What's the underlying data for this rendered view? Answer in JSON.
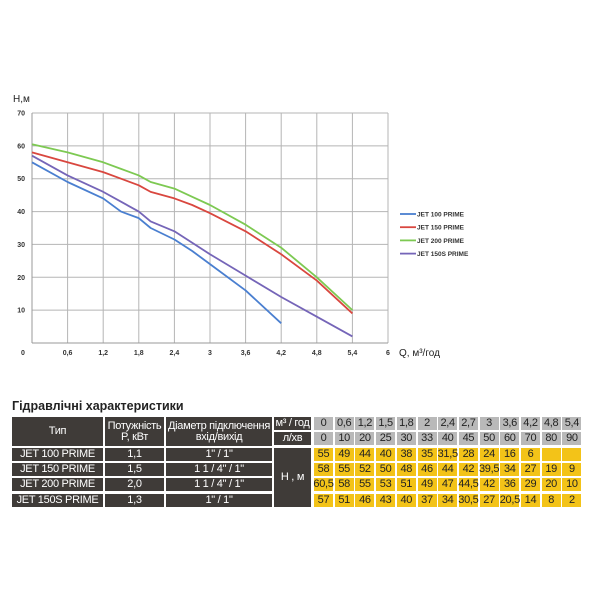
{
  "chart_data": {
    "type": "line",
    "ylabel": "H,м",
    "xlabel": "Q, м³/год",
    "xlim": [
      0,
      6
    ],
    "ylim": [
      0,
      70
    ],
    "xticks": [
      "0",
      "0,6",
      "1,2",
      "1,8",
      "2,4",
      "3",
      "3,6",
      "4,2",
      "4,8",
      "5,4",
      "6"
    ],
    "yticks": [
      "10",
      "20",
      "30",
      "40",
      "50",
      "60",
      "70"
    ],
    "grid": true,
    "legend_position": "right",
    "x": [
      0,
      0.6,
      1.2,
      1.5,
      1.8,
      2,
      2.4,
      2.7,
      3,
      3.6,
      4.2,
      4.8,
      5.4
    ],
    "series": [
      {
        "name": "JET 100 PRIME",
        "color": "#4a7fd0",
        "values": [
          55,
          49,
          44,
          40,
          38,
          35,
          31.5,
          28,
          24,
          16,
          6,
          null,
          null
        ]
      },
      {
        "name": "JET 150 PRIME",
        "color": "#d9473f",
        "values": [
          58,
          55,
          52,
          50,
          48,
          46,
          44,
          42,
          39.5,
          34,
          27,
          19,
          9
        ]
      },
      {
        "name": "JET 200 PRIME",
        "color": "#7dc952",
        "values": [
          60.5,
          58,
          55,
          53,
          51,
          49,
          47,
          44.5,
          42,
          36,
          29,
          20,
          10
        ]
      },
      {
        "name": "JET 150S PRIME",
        "color": "#7565b8",
        "values": [
          57,
          51,
          46,
          43,
          40,
          37,
          34,
          30.5,
          27,
          20.5,
          14,
          8,
          2
        ]
      }
    ]
  },
  "table": {
    "title": "Гідравлічні характеристики",
    "headers": {
      "type": "Тип",
      "power": "Потужність P, кВт",
      "diameter": "Діаметр підключення вхід/вихід",
      "unit_m3": "м³ / год",
      "unit_lmin": "л/хв",
      "unit_h": "Н , м"
    },
    "q_m3h": [
      "0",
      "0,6",
      "1,2",
      "1,5",
      "1,8",
      "2",
      "2,4",
      "2,7",
      "3",
      "3,6",
      "4,2",
      "4,8",
      "5,4"
    ],
    "q_lmin": [
      "0",
      "10",
      "20",
      "25",
      "30",
      "33",
      "40",
      "45",
      "50",
      "60",
      "70",
      "80",
      "90"
    ],
    "rows": [
      {
        "type": "JET 100 PRIME",
        "power": "1,1",
        "diameter": "1\" / 1\"",
        "h": [
          "55",
          "49",
          "44",
          "40",
          "38",
          "35",
          "31,5",
          "28",
          "24",
          "16",
          "6",
          "",
          ""
        ]
      },
      {
        "type": "JET 150 PRIME",
        "power": "1,5",
        "diameter": "1 1 / 4\" / 1\"",
        "h": [
          "58",
          "55",
          "52",
          "50",
          "48",
          "46",
          "44",
          "42",
          "39,5",
          "34",
          "27",
          "19",
          "9"
        ]
      },
      {
        "type": "JET 200 PRIME",
        "power": "2,0",
        "diameter": "1 1 / 4\" / 1\"",
        "h": [
          "60,5",
          "58",
          "55",
          "53",
          "51",
          "49",
          "47",
          "44,5",
          "42",
          "36",
          "29",
          "20",
          "10"
        ]
      },
      {
        "type": "JET 150S PRIME",
        "power": "1,3",
        "diameter": "1\" / 1\"",
        "h": [
          "57",
          "51",
          "46",
          "43",
          "40",
          "37",
          "34",
          "30,5",
          "27",
          "20,5",
          "14",
          "8",
          "2"
        ]
      }
    ]
  }
}
